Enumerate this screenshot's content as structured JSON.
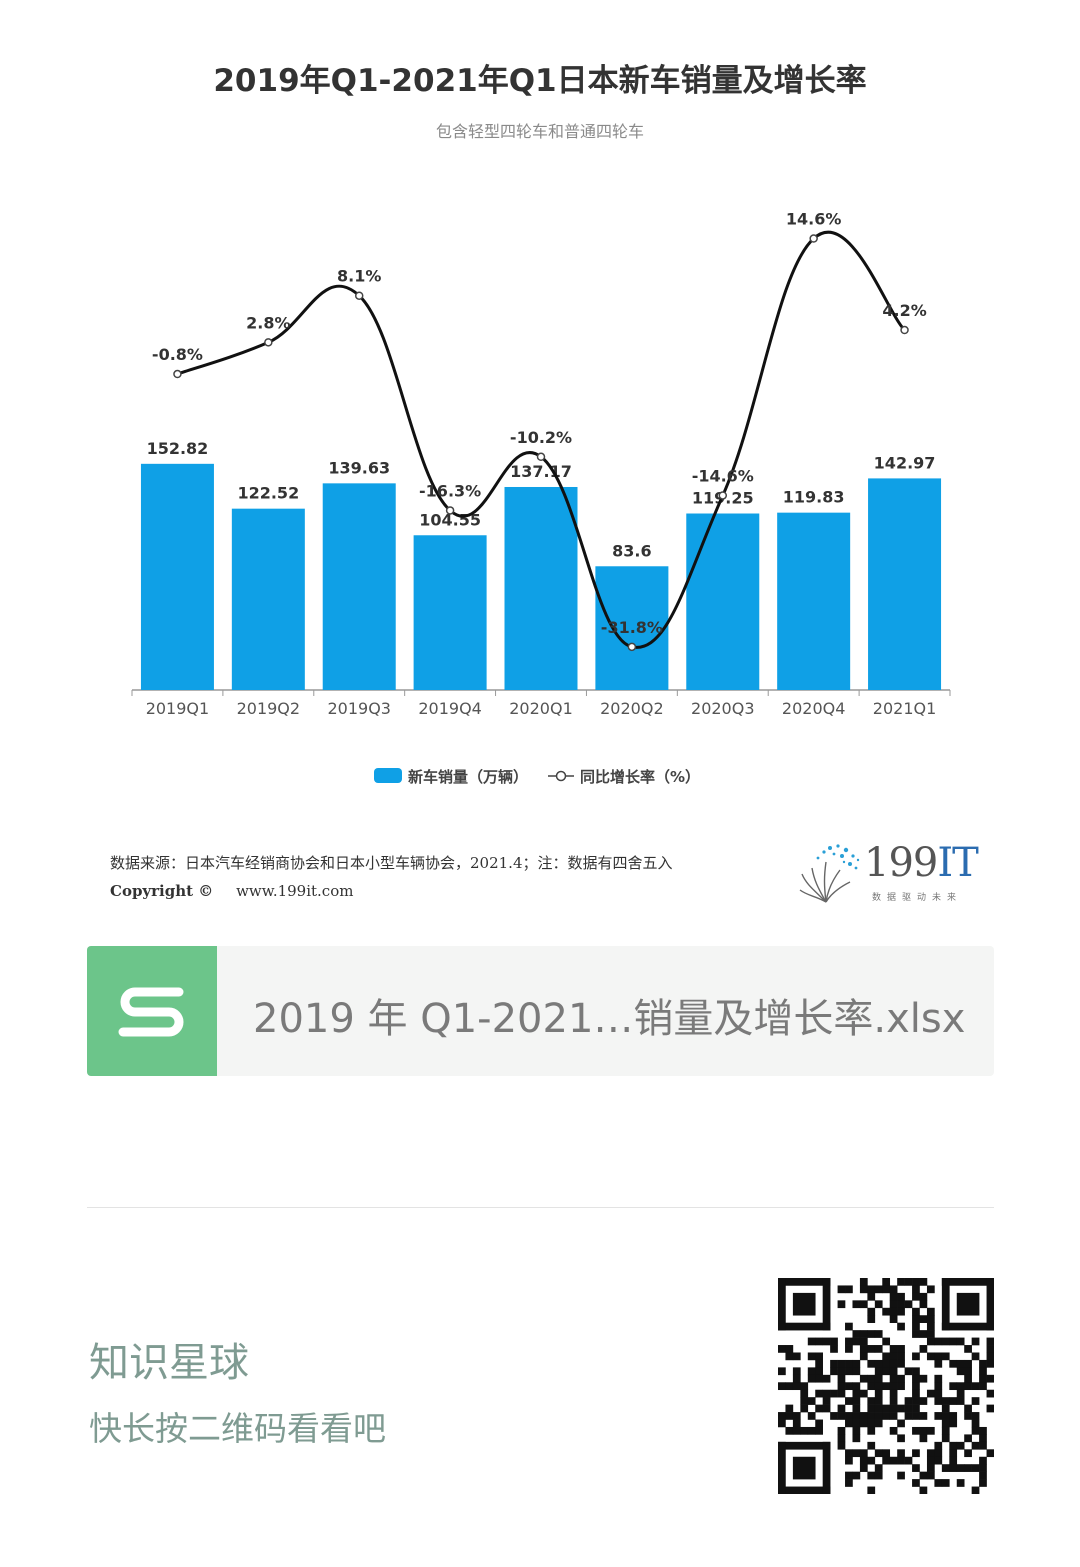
{
  "chart_data": {
    "type": "bar+line",
    "title": "2019年Q1-2021年Q1日本新车销量及增长率",
    "subtitle": "包含轻型四轮车和普通四轮车",
    "categories": [
      "2019Q1",
      "2019Q2",
      "2019Q3",
      "2019Q4",
      "2020Q1",
      "2020Q2",
      "2020Q3",
      "2020Q4",
      "2021Q1"
    ],
    "series": [
      {
        "name": "新车销量（万辆）",
        "type": "bar",
        "values": [
          152.82,
          122.52,
          139.63,
          104.55,
          137.17,
          83.6,
          119.25,
          119.83,
          142.97
        ],
        "labels": [
          "152.82",
          "122.52",
          "139.63",
          "104.55",
          "137.17",
          "83.6",
          "119.25",
          "119.83",
          "142.97"
        ],
        "color": "#0fa0e6"
      },
      {
        "name": "同比增长率（%）",
        "type": "line",
        "values": [
          -0.8,
          2.8,
          8.1,
          -16.3,
          -10.2,
          -31.8,
          -14.6,
          14.6,
          4.2
        ],
        "labels": [
          "-0.8%",
          "2.8%",
          "8.1%",
          "-16.3%",
          "-10.2%",
          "-31.8%",
          "-14.6%",
          "14.6%",
          "4.2%"
        ],
        "color": "#111111"
      }
    ],
    "ylim": [
      0,
      160
    ],
    "y2lim": [
      -40,
      20
    ],
    "grid": false,
    "legend_position": "bottom"
  },
  "footer": {
    "source": "数据来源：日本汽车经销商协会和日本小型车辆协会，2021.4；注：数据有四舍五入",
    "copyright_label": "Copyright ©",
    "url": "www.199it.com",
    "logo_number": "199",
    "logo_letters": "IT",
    "logo_slogan": "数据驱动未来"
  },
  "file_card": {
    "file_name": "2019 年 Q1-2021…销量及增长率.xlsx",
    "icon_letter": "S"
  },
  "planet": {
    "title": "知识星球",
    "subtitle": "快长按二维码看看吧"
  }
}
